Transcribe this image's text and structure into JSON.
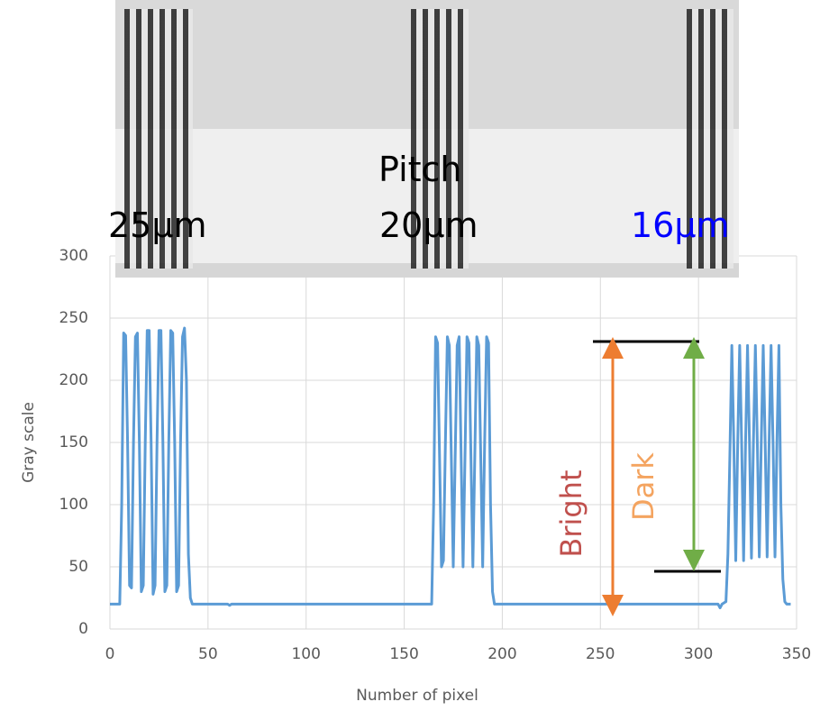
{
  "chart_data": {
    "type": "line",
    "xlabel": "Number of pixel",
    "ylabel": "Gray scale",
    "xlim": [
      0,
      350
    ],
    "xticks": [
      0,
      50,
      100,
      150,
      200,
      250,
      300,
      350
    ],
    "ylim": [
      0,
      300
    ],
    "yticks": [
      0,
      50,
      100,
      150,
      200,
      250,
      300
    ],
    "grid": true,
    "color": "#5b9bd5",
    "x": [
      0,
      5,
      6,
      7,
      8,
      9,
      10,
      11,
      12,
      13,
      14,
      15,
      16,
      17,
      18,
      19,
      20,
      21,
      22,
      23,
      24,
      25,
      26,
      27,
      28,
      29,
      30,
      31,
      32,
      33,
      34,
      35,
      36,
      37,
      38,
      39,
      40,
      41,
      42,
      60,
      61,
      62,
      164,
      165,
      166,
      167,
      168,
      169,
      170,
      171,
      172,
      173,
      174,
      175,
      176,
      177,
      178,
      179,
      180,
      181,
      182,
      183,
      184,
      185,
      186,
      187,
      188,
      189,
      190,
      191,
      192,
      193,
      194,
      195,
      196,
      310,
      311,
      312,
      314,
      315,
      316,
      317,
      318,
      319,
      320,
      321,
      322,
      323,
      324,
      325,
      326,
      327,
      328,
      329,
      330,
      331,
      332,
      333,
      334,
      335,
      336,
      337,
      338,
      339,
      340,
      341,
      342,
      343,
      344,
      345,
      347
    ],
    "values": [
      20,
      20,
      100,
      238,
      236,
      150,
      35,
      33,
      150,
      235,
      238,
      150,
      30,
      35,
      150,
      240,
      240,
      150,
      28,
      35,
      150,
      240,
      240,
      150,
      30,
      35,
      150,
      240,
      238,
      150,
      30,
      35,
      150,
      235,
      242,
      200,
      60,
      25,
      20,
      20,
      19,
      20,
      20,
      100,
      235,
      230,
      140,
      50,
      55,
      150,
      235,
      228,
      140,
      50,
      140,
      228,
      235,
      140,
      50,
      140,
      235,
      230,
      140,
      50,
      140,
      235,
      228,
      140,
      50,
      150,
      235,
      230,
      100,
      30,
      20,
      20,
      17,
      20,
      22,
      60,
      140,
      228,
      150,
      55,
      150,
      228,
      150,
      55,
      150,
      228,
      150,
      57,
      150,
      228,
      150,
      58,
      150,
      228,
      150,
      58,
      150,
      228,
      150,
      58,
      150,
      228,
      100,
      40,
      22,
      20,
      20
    ],
    "annotations": [
      "Bright",
      "Dark"
    ],
    "image_labels": {
      "pitch": "Pitch",
      "pitches": [
        "25µm",
        "20µm",
        "16µm"
      ]
    }
  }
}
